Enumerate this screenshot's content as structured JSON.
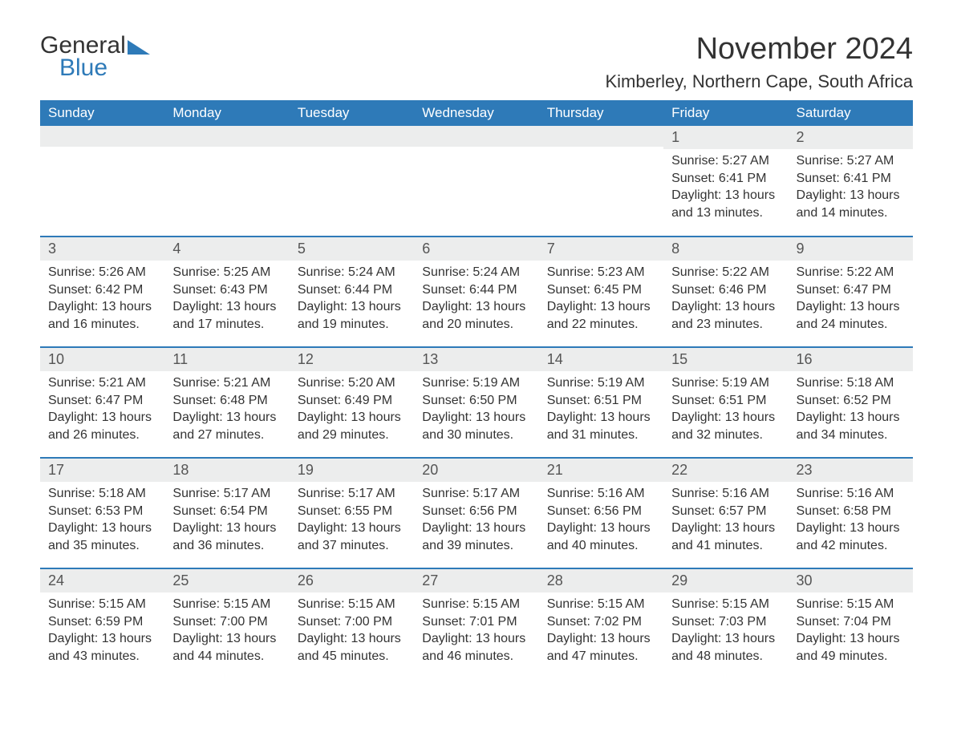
{
  "brand": {
    "part1": "General",
    "part2": "Blue"
  },
  "title": "November 2024",
  "location": "Kimberley, Northern Cape, South Africa",
  "theme": {
    "header_bg": "#2e7ab8",
    "header_fg": "#ffffff",
    "daynum_bg": "#eceded",
    "sep_color": "#2e7ab8",
    "text_color": "#333333",
    "body_bg": "#ffffff"
  },
  "daynames": [
    "Sunday",
    "Monday",
    "Tuesday",
    "Wednesday",
    "Thursday",
    "Friday",
    "Saturday"
  ],
  "labels": {
    "sunrise": "Sunrise:",
    "sunset": "Sunset:",
    "daylight": "Daylight:"
  },
  "weeks": [
    [
      {
        "blank": true
      },
      {
        "blank": true
      },
      {
        "blank": true
      },
      {
        "blank": true
      },
      {
        "blank": true
      },
      {
        "n": "1",
        "sunrise": "5:27 AM",
        "sunset": "6:41 PM",
        "dl": "13 hours and 13 minutes."
      },
      {
        "n": "2",
        "sunrise": "5:27 AM",
        "sunset": "6:41 PM",
        "dl": "13 hours and 14 minutes."
      }
    ],
    [
      {
        "n": "3",
        "sunrise": "5:26 AM",
        "sunset": "6:42 PM",
        "dl": "13 hours and 16 minutes."
      },
      {
        "n": "4",
        "sunrise": "5:25 AM",
        "sunset": "6:43 PM",
        "dl": "13 hours and 17 minutes."
      },
      {
        "n": "5",
        "sunrise": "5:24 AM",
        "sunset": "6:44 PM",
        "dl": "13 hours and 19 minutes."
      },
      {
        "n": "6",
        "sunrise": "5:24 AM",
        "sunset": "6:44 PM",
        "dl": "13 hours and 20 minutes."
      },
      {
        "n": "7",
        "sunrise": "5:23 AM",
        "sunset": "6:45 PM",
        "dl": "13 hours and 22 minutes."
      },
      {
        "n": "8",
        "sunrise": "5:22 AM",
        "sunset": "6:46 PM",
        "dl": "13 hours and 23 minutes."
      },
      {
        "n": "9",
        "sunrise": "5:22 AM",
        "sunset": "6:47 PM",
        "dl": "13 hours and 24 minutes."
      }
    ],
    [
      {
        "n": "10",
        "sunrise": "5:21 AM",
        "sunset": "6:47 PM",
        "dl": "13 hours and 26 minutes."
      },
      {
        "n": "11",
        "sunrise": "5:21 AM",
        "sunset": "6:48 PM",
        "dl": "13 hours and 27 minutes."
      },
      {
        "n": "12",
        "sunrise": "5:20 AM",
        "sunset": "6:49 PM",
        "dl": "13 hours and 29 minutes."
      },
      {
        "n": "13",
        "sunrise": "5:19 AM",
        "sunset": "6:50 PM",
        "dl": "13 hours and 30 minutes."
      },
      {
        "n": "14",
        "sunrise": "5:19 AM",
        "sunset": "6:51 PM",
        "dl": "13 hours and 31 minutes."
      },
      {
        "n": "15",
        "sunrise": "5:19 AM",
        "sunset": "6:51 PM",
        "dl": "13 hours and 32 minutes."
      },
      {
        "n": "16",
        "sunrise": "5:18 AM",
        "sunset": "6:52 PM",
        "dl": "13 hours and 34 minutes."
      }
    ],
    [
      {
        "n": "17",
        "sunrise": "5:18 AM",
        "sunset": "6:53 PM",
        "dl": "13 hours and 35 minutes."
      },
      {
        "n": "18",
        "sunrise": "5:17 AM",
        "sunset": "6:54 PM",
        "dl": "13 hours and 36 minutes."
      },
      {
        "n": "19",
        "sunrise": "5:17 AM",
        "sunset": "6:55 PM",
        "dl": "13 hours and 37 minutes."
      },
      {
        "n": "20",
        "sunrise": "5:17 AM",
        "sunset": "6:56 PM",
        "dl": "13 hours and 39 minutes."
      },
      {
        "n": "21",
        "sunrise": "5:16 AM",
        "sunset": "6:56 PM",
        "dl": "13 hours and 40 minutes."
      },
      {
        "n": "22",
        "sunrise": "5:16 AM",
        "sunset": "6:57 PM",
        "dl": "13 hours and 41 minutes."
      },
      {
        "n": "23",
        "sunrise": "5:16 AM",
        "sunset": "6:58 PM",
        "dl": "13 hours and 42 minutes."
      }
    ],
    [
      {
        "n": "24",
        "sunrise": "5:15 AM",
        "sunset": "6:59 PM",
        "dl": "13 hours and 43 minutes."
      },
      {
        "n": "25",
        "sunrise": "5:15 AM",
        "sunset": "7:00 PM",
        "dl": "13 hours and 44 minutes."
      },
      {
        "n": "26",
        "sunrise": "5:15 AM",
        "sunset": "7:00 PM",
        "dl": "13 hours and 45 minutes."
      },
      {
        "n": "27",
        "sunrise": "5:15 AM",
        "sunset": "7:01 PM",
        "dl": "13 hours and 46 minutes."
      },
      {
        "n": "28",
        "sunrise": "5:15 AM",
        "sunset": "7:02 PM",
        "dl": "13 hours and 47 minutes."
      },
      {
        "n": "29",
        "sunrise": "5:15 AM",
        "sunset": "7:03 PM",
        "dl": "13 hours and 48 minutes."
      },
      {
        "n": "30",
        "sunrise": "5:15 AM",
        "sunset": "7:04 PM",
        "dl": "13 hours and 49 minutes."
      }
    ]
  ]
}
